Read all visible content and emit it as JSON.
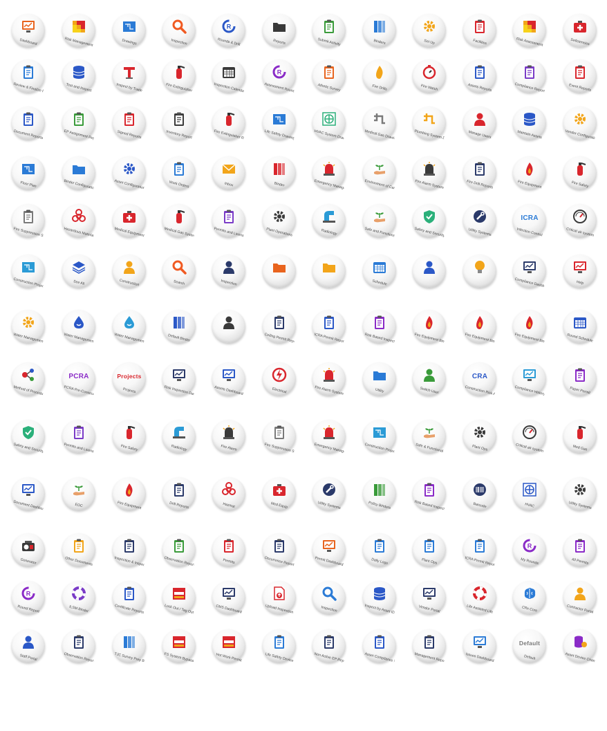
{
  "icons": [
    [
      {
        "label": "Dashboard",
        "icon": "monitor-chart-icon",
        "color": "#e8641e"
      },
      {
        "label": "Risk Management",
        "icon": "risk-matrix-icon",
        "color": "#d9262d"
      },
      {
        "label": "Drawings",
        "icon": "blueprint-icon",
        "color": "#2b7bd6"
      },
      {
        "label": "Inspection",
        "icon": "magnifier-icon",
        "color": "#f05a22"
      },
      {
        "label": "Rounds & Drill",
        "icon": "round-r-icon",
        "color": "#2b58c7"
      },
      {
        "label": "Reports",
        "icon": "folder-documents-icon",
        "color": "#3a3a3a"
      },
      {
        "label": "Submit Activity",
        "icon": "clipboard-check-icon",
        "color": "#3a9b3a"
      },
      {
        "label": "Binders",
        "icon": "binder-stack-icon",
        "color": "#2b7bd6"
      },
      {
        "label": "Set Up",
        "icon": "gear-setup-icon",
        "color": "#f2a51a"
      },
      {
        "label": "Facilities",
        "icon": "facility-grid-icon",
        "color": "#d9262d"
      },
      {
        "label": "Risk Assessment",
        "icon": "risk-level-icon",
        "color": "#f2a51a"
      },
      {
        "label": "Deficiencies",
        "icon": "first-aid-kit-icon",
        "color": "#d9262d"
      }
    ],
    [
      {
        "label": "Review & Finalize Reports",
        "icon": "checklist-icon",
        "color": "#2b7bd6"
      },
      {
        "label": "Test and Inspect",
        "icon": "database-icon",
        "color": "#2b58c7"
      },
      {
        "label": "Inspect by Trade",
        "icon": "trade-t-icon",
        "color": "#d9262d"
      },
      {
        "label": "Fire Extinguisher",
        "icon": "fire-extinguisher-icon",
        "color": "#d9262d"
      },
      {
        "label": "Inspection Calendar",
        "icon": "calendar-icon",
        "color": "#3a3a3a"
      },
      {
        "label": "Assessment Rounds",
        "icon": "round-r-icon",
        "color": "#8a2bc7"
      },
      {
        "label": "Athetic Survey",
        "icon": "clipboard-list-icon",
        "color": "#e8641e"
      },
      {
        "label": "Fire Drills",
        "icon": "document-flame-icon",
        "color": "#f2a51a"
      },
      {
        "label": "Fire Watch",
        "icon": "stopwatch-icon",
        "color": "#d9262d"
      },
      {
        "label": "Assets Reports",
        "icon": "report-icon",
        "color": "#2b58c7"
      },
      {
        "label": "Compliance Reports",
        "icon": "report-check-icon",
        "color": "#7a3bc7"
      },
      {
        "label": "Event Reports",
        "icon": "report-alert-icon",
        "color": "#d9262d"
      }
    ],
    [
      {
        "label": "Document Reports",
        "icon": "document-list-icon",
        "color": "#2b58c7"
      },
      {
        "label": "EP Assignment Reports",
        "icon": "clipboard-chart-icon",
        "color": "#3a9b3a"
      },
      {
        "label": "Signed Reports",
        "icon": "signed-report-icon",
        "color": "#d9262d"
      },
      {
        "label": "Inventory Report",
        "icon": "inventory-icon",
        "color": "#3a3a3a"
      },
      {
        "label": "Fire Extinguisher Reports",
        "icon": "fire-extinguisher-icon",
        "color": "#d9262d"
      },
      {
        "label": "Life Safety Drawings",
        "icon": "floor-drawing-icon",
        "color": "#2b7bd6"
      },
      {
        "label": "HVAC System Drawings",
        "icon": "hvac-fan-icon",
        "color": "#2bb07a"
      },
      {
        "label": "Medical Gas Drawings",
        "icon": "pipe-icon",
        "color": "#7a7a7a"
      },
      {
        "label": "Plumbing System Drawings",
        "icon": "plumbing-icon",
        "color": "#f2a51a"
      },
      {
        "label": "Manage Users",
        "icon": "users-group-icon",
        "color": "#d9262d"
      },
      {
        "label": "Maintain Assets",
        "icon": "database-icon",
        "color": "#2b58c7"
      },
      {
        "label": "Vendor Configuration",
        "icon": "user-gear-icon",
        "color": "#f2a51a"
      }
    ],
    [
      {
        "label": "Floor Plan",
        "icon": "floor-plan-icon",
        "color": "#2b7bd6"
      },
      {
        "label": "Binder Configurations",
        "icon": "folder-outline-icon",
        "color": "#2b7bd6"
      },
      {
        "label": "Asset Configurations",
        "icon": "gears-icon",
        "color": "#2b58c7"
      },
      {
        "label": "Work Orders",
        "icon": "work-order-icon",
        "color": "#2b7bd6"
      },
      {
        "label": "Inbox",
        "icon": "envelope-icon",
        "color": "#f2a51a"
      },
      {
        "label": "Binder",
        "icon": "binders-icon",
        "color": "#d9262d"
      },
      {
        "label": "Emergency Management",
        "icon": "siren-icon",
        "color": "#d9262d"
      },
      {
        "label": "Environment of Care",
        "icon": "hand-plant-icon",
        "color": "#3a9b3a"
      },
      {
        "label": "Fire Alarm System",
        "icon": "fire-alarm-icon",
        "color": "#3a3a3a"
      },
      {
        "label": "Fire Drill Reports",
        "icon": "drill-report-icon",
        "color": "#2b3a6a"
      },
      {
        "label": "Fire Equipment",
        "icon": "flame-drop-icon",
        "color": "#d9262d"
      },
      {
        "label": "Fire Safety",
        "icon": "fire-extinguisher-icon",
        "color": "#d9262d"
      }
    ],
    [
      {
        "label": "Fire Suppression System",
        "icon": "suppression-panel-icon",
        "color": "#7a7a7a"
      },
      {
        "label": "Hazardous Materials",
        "icon": "biohazard-icon",
        "color": "#d9262d"
      },
      {
        "label": "Medical Equipment",
        "icon": "medical-kit-icon",
        "color": "#d9262d"
      },
      {
        "label": "Medical Gas System",
        "icon": "gas-cylinder-icon",
        "color": "#d9262d"
      },
      {
        "label": "Permits and Licenses",
        "icon": "permit-icon",
        "color": "#7a3bc7"
      },
      {
        "label": "Plant Operations",
        "icon": "plant-gear-icon",
        "color": "#3a3a3a"
      },
      {
        "label": "Radiology",
        "icon": "xray-machine-icon",
        "color": "#2b9bd6"
      },
      {
        "label": "Safe and Functional Environment",
        "icon": "safe-environment-icon",
        "color": "#3a9b3a"
      },
      {
        "label": "Safety and Security",
        "icon": "shield-check-icon",
        "color": "#2bb07a"
      },
      {
        "label": "Utility Systems",
        "icon": "wrench-icon",
        "color": "#2b3a6a"
      },
      {
        "label": "Infection Control",
        "icon": "icra-text-icon",
        "color": "#2b7bd6"
      },
      {
        "label": "Critical air system",
        "icon": "gauge-icon",
        "color": "#3a3a3a"
      }
    ],
    [
      {
        "label": "Construction Projects",
        "icon": "construction-drawing-icon",
        "color": "#2b9bd6"
      },
      {
        "label": "See All",
        "icon": "layers-icon",
        "color": "#2b58c7"
      },
      {
        "label": "Construction",
        "icon": "worker-icon",
        "color": "#f2a51a"
      },
      {
        "label": "Search",
        "icon": "magnifier-icon",
        "color": "#f05a22"
      },
      {
        "label": "Inspection",
        "icon": "inspector-icon",
        "color": "#2b3a6a"
      },
      {
        "label": "",
        "icon": "folder-orange-icon",
        "color": "#e8641e"
      },
      {
        "label": "",
        "icon": "folder-yellow-icon",
        "color": "#f2a51a"
      },
      {
        "label": "Schedule",
        "icon": "calendar-grid-icon",
        "color": "#2b7bd6"
      },
      {
        "label": "",
        "icon": "chat-users-icon",
        "color": "#2b58c7"
      },
      {
        "label": "",
        "icon": "lightbulb-icon",
        "color": "#f2a51a"
      },
      {
        "label": "Compliance Dashboard",
        "icon": "monitor-pie-icon",
        "color": "#2b3a6a"
      },
      {
        "label": "Help",
        "icon": "help-screen-icon",
        "color": "#d9262d"
      }
    ],
    [
      {
        "label": "Water Management Program Binder",
        "icon": "water-gear-icon",
        "color": "#f2a51a"
      },
      {
        "label": "Water Management Program Binder",
        "icon": "water-cycle-icon",
        "color": "#2b58c7"
      },
      {
        "label": "Water Management Binder",
        "icon": "water-drop-icon",
        "color": "#2b9bd6"
      },
      {
        "label": "Default Binder",
        "icon": "binder-blue-icon",
        "color": "#2b58c7"
      },
      {
        "label": "",
        "icon": "user-silhouette-icon",
        "color": "#3a3a3a"
      },
      {
        "label": "Ceiling Permit Report",
        "icon": "ceiling-permit-icon",
        "color": "#2b3a6a"
      },
      {
        "label": "ICRA Permit Report",
        "icon": "icra-permit-icon",
        "color": "#2b58c7"
      },
      {
        "label": "Risk Based Inspection Report",
        "icon": "risk-inspection-icon",
        "color": "#8a2bc7"
      },
      {
        "label": "Fire Equipment Binder",
        "icon": "fire-binder-icon",
        "color": "#d9262d"
      },
      {
        "label": "Fire Equipment Binder II",
        "icon": "fire-binder-icon",
        "color": "#d9262d"
      },
      {
        "label": "Fire Equipment Binder III",
        "icon": "fire-binder-icon",
        "color": "#d9262d"
      },
      {
        "label": "Round Schedule",
        "icon": "round-schedule-icon",
        "color": "#2b58c7"
      }
    ],
    [
      {
        "label": "Method of Procedure",
        "icon": "procedure-flow-icon",
        "color": "#d9262d"
      },
      {
        "label": "PCRA Pre-Construction",
        "icon": "pcra-text-icon",
        "color": "#8a2bc7"
      },
      {
        "label": "Projects",
        "icon": "projects-text-icon",
        "color": "#d9262d"
      },
      {
        "label": "Risk Inspection Dashboard",
        "icon": "inspection-dashboard-icon",
        "color": "#2b3a6a"
      },
      {
        "label": "Assets Dashboard",
        "icon": "assets-dashboard-icon",
        "color": "#2b58c7"
      },
      {
        "label": "Electrical",
        "icon": "lightning-circle-icon",
        "color": "#d9262d"
      },
      {
        "label": "Fire Alarm System",
        "icon": "home-alarm-icon",
        "color": "#d9262d"
      },
      {
        "label": "Utility",
        "icon": "utility-folder-icon",
        "color": "#2b7bd6"
      },
      {
        "label": "Switch User",
        "icon": "switch-user-icon",
        "color": "#3a9b3a"
      },
      {
        "label": "Construction Risk Assessment",
        "icon": "cra-text-icon",
        "color": "#2b58c7"
      },
      {
        "label": "Compliance History",
        "icon": "compliance-history-icon",
        "color": "#2b9bd6"
      },
      {
        "label": "Paper Permit",
        "icon": "paper-permit-icon",
        "color": "#8a2bc7"
      }
    ],
    [
      {
        "label": "Safety and Security",
        "icon": "shield-check-icon",
        "color": "#2bb07a"
      },
      {
        "label": "Permits and Licenses",
        "icon": "permit-icon",
        "color": "#7a3bc7"
      },
      {
        "label": "Fire Safety",
        "icon": "fire-extinguisher-icon",
        "color": "#d9262d"
      },
      {
        "label": "Radiology",
        "icon": "xray-machine-icon",
        "color": "#2b9bd6"
      },
      {
        "label": "Fire Alarm",
        "icon": "fire-alarm-icon",
        "color": "#3a3a3a"
      },
      {
        "label": "Fire Suppression System",
        "icon": "suppression-panel-icon",
        "color": "#7a7a7a"
      },
      {
        "label": "Emergency Management",
        "icon": "siren-icon",
        "color": "#d9262d"
      },
      {
        "label": "Construction Projects",
        "icon": "construction-drawing-icon",
        "color": "#2b9bd6"
      },
      {
        "label": "Safe & Functional",
        "icon": "safe-environment-icon",
        "color": "#3a9b3a"
      },
      {
        "label": "Plant Ops",
        "icon": "plant-gear-icon",
        "color": "#3a3a3a"
      },
      {
        "label": "Critical air system",
        "icon": "gauge-icon",
        "color": "#3a3a3a"
      },
      {
        "label": "Med Gas",
        "icon": "gas-cylinder-icon",
        "color": "#d9262d"
      }
    ],
    [
      {
        "label": "Document Dashboard",
        "icon": "document-dashboard-icon",
        "color": "#2b58c7"
      },
      {
        "label": "EOC",
        "icon": "hand-plant-icon",
        "color": "#3a9b3a"
      },
      {
        "label": "Fire Equipment",
        "icon": "flame-drop-icon",
        "color": "#d9262d"
      },
      {
        "label": "Drill Reports",
        "icon": "drill-report-icon",
        "color": "#2b3a6a"
      },
      {
        "label": "Hazmat",
        "icon": "biohazard-icon",
        "color": "#d9262d"
      },
      {
        "label": "Med Equip",
        "icon": "medical-kit-icon",
        "color": "#d9262d"
      },
      {
        "label": "Utility Systems",
        "icon": "wrench-icon",
        "color": "#2b3a6a"
      },
      {
        "label": "Policy Binders",
        "icon": "policy-binder-icon",
        "color": "#3a9b3a"
      },
      {
        "label": "Risk Based Inspection",
        "icon": "risk-inspection-icon",
        "color": "#8a2bc7"
      },
      {
        "label": "Barcode",
        "icon": "barcode-icon",
        "color": "#2b3a6a"
      },
      {
        "label": "HVAC",
        "icon": "hvac-circuit-icon",
        "color": "#2b58c7"
      },
      {
        "label": "Utility Systems",
        "icon": "utility-gear-icon",
        "color": "#3a3a3a"
      }
    ],
    [
      {
        "label": "Generator",
        "icon": "generator-icon",
        "color": "#3a3a3a"
      },
      {
        "label": "Other Documents",
        "icon": "other-documents-icon",
        "color": "#f2a51a"
      },
      {
        "label": "Inspection & Inspection Report",
        "icon": "inspection-report-icon",
        "color": "#2b3a6a"
      },
      {
        "label": "Observation Report",
        "icon": "icra-observation-icon",
        "color": "#3a9b3a"
      },
      {
        "label": "Permits",
        "icon": "permits-check-icon",
        "color": "#d9262d"
      },
      {
        "label": "Occurrence Report",
        "icon": "occurrence-report-icon",
        "color": "#2b3a6a"
      },
      {
        "label": "Permit Dashboard",
        "icon": "permit-dashboard-icon",
        "color": "#e8641e"
      },
      {
        "label": "Daily Logs",
        "icon": "daily-logs-icon",
        "color": "#2b7bd6"
      },
      {
        "label": "Plant Ops",
        "icon": "plant-ops-building-icon",
        "color": "#2b7bd6"
      },
      {
        "label": "ICRA Permit Report",
        "icon": "icra-observation-icon",
        "color": "#2b7bd6"
      },
      {
        "label": "My Rounds",
        "icon": "round-r-icon",
        "color": "#8a2bc7"
      },
      {
        "label": "All Permits",
        "icon": "all-permits-icon",
        "color": "#8a2bc7"
      }
    ],
    [
      {
        "label": "Round Report",
        "icon": "round-report-icon",
        "color": "#8a2bc7"
      },
      {
        "label": "ILSM Binder",
        "icon": "lifebuoy-binder-icon",
        "color": "#7a3bc7"
      },
      {
        "label": "Certificate Reports",
        "icon": "certificate-report-icon",
        "color": "#2b58c7"
      },
      {
        "label": "Lock Out / Tag Out",
        "icon": "lockout-sign-icon",
        "color": "#d9262d"
      },
      {
        "label": "CMS Dashboard",
        "icon": "cms-dashboard-icon",
        "color": "#2b3a6a"
      },
      {
        "label": "Upload Inspection",
        "icon": "upload-document-icon",
        "color": "#d9262d"
      },
      {
        "label": "Inspection",
        "icon": "map-magnifier-icon",
        "color": "#2b7bd6"
      },
      {
        "label": "Inspect by Asset ID",
        "icon": "database-icon",
        "color": "#2b58c7"
      },
      {
        "label": "Vendor Portal",
        "icon": "vendor-portal-icon",
        "color": "#2b3a6a"
      },
      {
        "label": "Life Assisted Life",
        "icon": "lifebuoy-icon",
        "color": "#d9262d"
      },
      {
        "label": "CRx Core",
        "icon": "brain-icon",
        "color": "#2b7bd6"
      },
      {
        "label": "Contractor Portal",
        "icon": "contractor-icon",
        "color": "#f2a51a"
      }
    ],
    [
      {
        "label": "Staff Portal",
        "icon": "staff-group-icon",
        "color": "#2b58c7"
      },
      {
        "label": "Observation Report",
        "icon": "observation-clipboard-icon",
        "color": "#2b3a6a"
      },
      {
        "label": "TJC Survey Prep Binder",
        "icon": "survey-binder-icon",
        "color": "#2b7bd6"
      },
      {
        "label": "FS System Bypass Permit",
        "icon": "bypass-permit-icon",
        "color": "#d9262d"
      },
      {
        "label": "Hot Work Permit",
        "icon": "hot-work-permit-icon",
        "color": "#d9262d"
      },
      {
        "label": "Life Safety Device",
        "icon": "life-safety-device-icon",
        "color": "#2b7bd6"
      },
      {
        "label": "Non Active EP Reports",
        "icon": "ep-report-clock-icon",
        "color": "#2b3a6a"
      },
      {
        "label": "Asset Compliance Matrix",
        "icon": "compliance-matrix-icon",
        "color": "#2b58c7"
      },
      {
        "label": "Management Reports",
        "icon": "management-report-icon",
        "color": "#2b3a6a"
      },
      {
        "label": "Issues Dashboard",
        "icon": "issues-dashboard-icon",
        "color": "#2b7bd6"
      },
      {
        "label": "Default",
        "icon": "default-text-icon",
        "color": "#7a7a7a"
      },
      {
        "label": "Asset Device Change",
        "icon": "device-change-icon",
        "color": "#8a2bc7"
      }
    ]
  ],
  "text_glyphs": {
    "icra-text-icon": "ICRA",
    "pcra-text-icon": "PCRA",
    "projects-text-icon": "Projects",
    "cra-text-icon": "CRA",
    "default-text-icon": "Default"
  }
}
